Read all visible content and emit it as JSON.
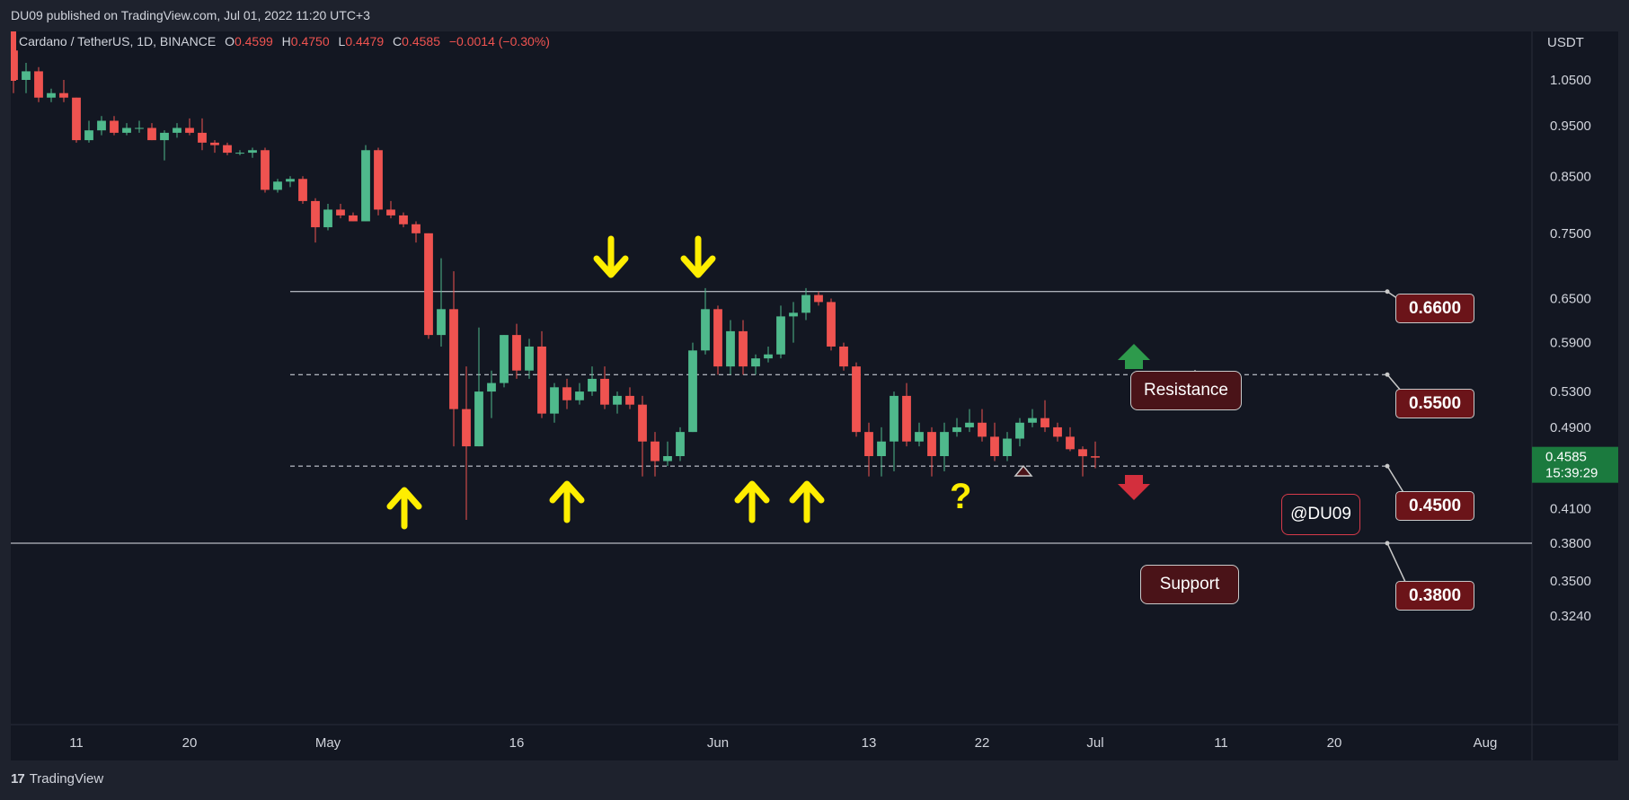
{
  "header": {
    "published": "DU09 published on TradingView.com, Jul 01, 2022 11:20 UTC+3"
  },
  "legend": {
    "symbol": "Cardano / TetherUS, 1D, BINANCE",
    "o_label": "O",
    "o_value": "0.4599",
    "h_label": "H",
    "h_value": "0.4750",
    "l_label": "L",
    "l_value": "0.4479",
    "c_label": "C",
    "c_value": "0.4585",
    "change": "−0.0014 (−0.30%)"
  },
  "price_axis": {
    "currency": "USDT",
    "current_price": "0.4585",
    "countdown": "15:39:29"
  },
  "annotations": {
    "levels": [
      "0.6600",
      "0.5500",
      "0.4500",
      "0.3800"
    ],
    "resistance_label": "Resistance",
    "support_label": "Support",
    "question_mark": "?",
    "watermark": "@DU09"
  },
  "footer": {
    "brand": "TradingView"
  },
  "colors": {
    "background": "#131722",
    "up": "#26a69a",
    "up_candle": "#4fb98c",
    "down": "#ef5350",
    "arrow_yellow": "#ffee00",
    "callout_fill": "#6b1419",
    "green_arrow": "#2e9a4c",
    "red_arrow": "#d32f3d"
  },
  "chart_data": {
    "type": "candlestick",
    "title": "Cardano / TetherUS, 1D, BINANCE",
    "ylabel": "USDT",
    "y_scale": "log",
    "ylim": [
      0.31,
      1.15
    ],
    "y_ticks": [
      "1.0500",
      "0.9500",
      "0.8500",
      "0.7500",
      "0.6500",
      "0.5900",
      "0.5300",
      "0.4900",
      "0.4100",
      "0.3800",
      "0.3500",
      "0.3240"
    ],
    "x_ticks": [
      {
        "label": "11",
        "date": "2022-04-11"
      },
      {
        "label": "20",
        "date": "2022-04-20"
      },
      {
        "label": "May",
        "date": "2022-05-01"
      },
      {
        "label": "16",
        "date": "2022-05-16"
      },
      {
        "label": "Jun",
        "date": "2022-06-01"
      },
      {
        "label": "13",
        "date": "2022-06-13"
      },
      {
        "label": "22",
        "date": "2022-06-22"
      },
      {
        "label": "Jul",
        "date": "2022-07-01"
      },
      {
        "label": "11",
        "date": "2022-07-11"
      },
      {
        "label": "20",
        "date": "2022-07-20"
      },
      {
        "label": "Aug",
        "date": "2022-08-01"
      }
    ],
    "horizontal_levels": [
      {
        "value": 0.66,
        "style": "solid"
      },
      {
        "value": 0.55,
        "style": "dashed"
      },
      {
        "value": 0.45,
        "style": "dashed"
      },
      {
        "value": 0.38,
        "style": "solid"
      }
    ],
    "candles": [
      {
        "date": "2022-04-06",
        "o": 1.12,
        "h": 1.14,
        "l": 1.02,
        "c": 1.05
      },
      {
        "date": "2022-04-07",
        "o": 1.05,
        "h": 1.09,
        "l": 1.02,
        "c": 1.07
      },
      {
        "date": "2022-04-08",
        "o": 1.07,
        "h": 1.08,
        "l": 1.0,
        "c": 1.01
      },
      {
        "date": "2022-04-09",
        "o": 1.01,
        "h": 1.03,
        "l": 1.0,
        "c": 1.02
      },
      {
        "date": "2022-04-10",
        "o": 1.02,
        "h": 1.05,
        "l": 1.0,
        "c": 1.01
      },
      {
        "date": "2022-04-11",
        "o": 1.01,
        "h": 1.01,
        "l": 0.915,
        "c": 0.92
      },
      {
        "date": "2022-04-12",
        "o": 0.92,
        "h": 0.96,
        "l": 0.915,
        "c": 0.94
      },
      {
        "date": "2022-04-13",
        "o": 0.94,
        "h": 0.97,
        "l": 0.93,
        "c": 0.96
      },
      {
        "date": "2022-04-14",
        "o": 0.96,
        "h": 0.97,
        "l": 0.93,
        "c": 0.935
      },
      {
        "date": "2022-04-15",
        "o": 0.935,
        "h": 0.955,
        "l": 0.93,
        "c": 0.945
      },
      {
        "date": "2022-04-16",
        "o": 0.945,
        "h": 0.96,
        "l": 0.935,
        "c": 0.945
      },
      {
        "date": "2022-04-17",
        "o": 0.945,
        "h": 0.955,
        "l": 0.92,
        "c": 0.92
      },
      {
        "date": "2022-04-18",
        "o": 0.92,
        "h": 0.94,
        "l": 0.88,
        "c": 0.935
      },
      {
        "date": "2022-04-19",
        "o": 0.935,
        "h": 0.955,
        "l": 0.925,
        "c": 0.945
      },
      {
        "date": "2022-04-20",
        "o": 0.945,
        "h": 0.965,
        "l": 0.93,
        "c": 0.935
      },
      {
        "date": "2022-04-21",
        "o": 0.935,
        "h": 0.965,
        "l": 0.9,
        "c": 0.915
      },
      {
        "date": "2022-04-22",
        "o": 0.915,
        "h": 0.92,
        "l": 0.895,
        "c": 0.91
      },
      {
        "date": "2022-04-23",
        "o": 0.91,
        "h": 0.915,
        "l": 0.89,
        "c": 0.895
      },
      {
        "date": "2022-04-24",
        "o": 0.895,
        "h": 0.9,
        "l": 0.89,
        "c": 0.895
      },
      {
        "date": "2022-04-25",
        "o": 0.895,
        "h": 0.905,
        "l": 0.885,
        "c": 0.9
      },
      {
        "date": "2022-04-26",
        "o": 0.9,
        "h": 0.905,
        "l": 0.82,
        "c": 0.825
      },
      {
        "date": "2022-04-27",
        "o": 0.825,
        "h": 0.845,
        "l": 0.82,
        "c": 0.84
      },
      {
        "date": "2022-04-28",
        "o": 0.84,
        "h": 0.85,
        "l": 0.83,
        "c": 0.845
      },
      {
        "date": "2022-04-29",
        "o": 0.845,
        "h": 0.85,
        "l": 0.8,
        "c": 0.805
      },
      {
        "date": "2022-04-30",
        "o": 0.805,
        "h": 0.81,
        "l": 0.735,
        "c": 0.76
      },
      {
        "date": "2022-05-01",
        "o": 0.76,
        "h": 0.8,
        "l": 0.755,
        "c": 0.79
      },
      {
        "date": "2022-05-02",
        "o": 0.79,
        "h": 0.8,
        "l": 0.775,
        "c": 0.78
      },
      {
        "date": "2022-05-03",
        "o": 0.78,
        "h": 0.785,
        "l": 0.77,
        "c": 0.77
      },
      {
        "date": "2022-05-04",
        "o": 0.77,
        "h": 0.91,
        "l": 0.77,
        "c": 0.9
      },
      {
        "date": "2022-05-05",
        "o": 0.9,
        "h": 0.905,
        "l": 0.78,
        "c": 0.79
      },
      {
        "date": "2022-05-06",
        "o": 0.79,
        "h": 0.805,
        "l": 0.775,
        "c": 0.78
      },
      {
        "date": "2022-05-07",
        "o": 0.78,
        "h": 0.785,
        "l": 0.76,
        "c": 0.765
      },
      {
        "date": "2022-05-08",
        "o": 0.765,
        "h": 0.77,
        "l": 0.735,
        "c": 0.75
      },
      {
        "date": "2022-05-09",
        "o": 0.75,
        "h": 0.75,
        "l": 0.595,
        "c": 0.6
      },
      {
        "date": "2022-05-10",
        "o": 0.6,
        "h": 0.71,
        "l": 0.585,
        "c": 0.635
      },
      {
        "date": "2022-05-11",
        "o": 0.635,
        "h": 0.69,
        "l": 0.47,
        "c": 0.51
      },
      {
        "date": "2022-05-12",
        "o": 0.51,
        "h": 0.56,
        "l": 0.4,
        "c": 0.47
      },
      {
        "date": "2022-05-13",
        "o": 0.47,
        "h": 0.61,
        "l": 0.47,
        "c": 0.53
      },
      {
        "date": "2022-05-14",
        "o": 0.53,
        "h": 0.555,
        "l": 0.5,
        "c": 0.54
      },
      {
        "date": "2022-05-15",
        "o": 0.54,
        "h": 0.6,
        "l": 0.535,
        "c": 0.6
      },
      {
        "date": "2022-05-16",
        "o": 0.6,
        "h": 0.615,
        "l": 0.545,
        "c": 0.555
      },
      {
        "date": "2022-05-17",
        "o": 0.555,
        "h": 0.595,
        "l": 0.545,
        "c": 0.585
      },
      {
        "date": "2022-05-18",
        "o": 0.585,
        "h": 0.605,
        "l": 0.5,
        "c": 0.505
      },
      {
        "date": "2022-05-19",
        "o": 0.505,
        "h": 0.54,
        "l": 0.495,
        "c": 0.535
      },
      {
        "date": "2022-05-20",
        "o": 0.535,
        "h": 0.545,
        "l": 0.51,
        "c": 0.52
      },
      {
        "date": "2022-05-21",
        "o": 0.52,
        "h": 0.54,
        "l": 0.515,
        "c": 0.53
      },
      {
        "date": "2022-05-22",
        "o": 0.53,
        "h": 0.56,
        "l": 0.525,
        "c": 0.545
      },
      {
        "date": "2022-05-23",
        "o": 0.545,
        "h": 0.56,
        "l": 0.51,
        "c": 0.515
      },
      {
        "date": "2022-05-24",
        "o": 0.515,
        "h": 0.53,
        "l": 0.505,
        "c": 0.525
      },
      {
        "date": "2022-05-25",
        "o": 0.525,
        "h": 0.535,
        "l": 0.51,
        "c": 0.515
      },
      {
        "date": "2022-05-26",
        "o": 0.515,
        "h": 0.525,
        "l": 0.44,
        "c": 0.475
      },
      {
        "date": "2022-05-27",
        "o": 0.475,
        "h": 0.485,
        "l": 0.44,
        "c": 0.455
      },
      {
        "date": "2022-05-28",
        "o": 0.455,
        "h": 0.475,
        "l": 0.45,
        "c": 0.46
      },
      {
        "date": "2022-05-29",
        "o": 0.46,
        "h": 0.49,
        "l": 0.455,
        "c": 0.485
      },
      {
        "date": "2022-05-30",
        "o": 0.485,
        "h": 0.59,
        "l": 0.485,
        "c": 0.58
      },
      {
        "date": "2022-05-31",
        "o": 0.58,
        "h": 0.665,
        "l": 0.575,
        "c": 0.635
      },
      {
        "date": "2022-06-01",
        "o": 0.635,
        "h": 0.64,
        "l": 0.55,
        "c": 0.56
      },
      {
        "date": "2022-06-02",
        "o": 0.56,
        "h": 0.62,
        "l": 0.55,
        "c": 0.605
      },
      {
        "date": "2022-06-03",
        "o": 0.605,
        "h": 0.62,
        "l": 0.55,
        "c": 0.56
      },
      {
        "date": "2022-06-04",
        "o": 0.56,
        "h": 0.575,
        "l": 0.55,
        "c": 0.57
      },
      {
        "date": "2022-06-05",
        "o": 0.57,
        "h": 0.585,
        "l": 0.565,
        "c": 0.575
      },
      {
        "date": "2022-06-06",
        "o": 0.575,
        "h": 0.64,
        "l": 0.57,
        "c": 0.625
      },
      {
        "date": "2022-06-07",
        "o": 0.625,
        "h": 0.645,
        "l": 0.59,
        "c": 0.63
      },
      {
        "date": "2022-06-08",
        "o": 0.63,
        "h": 0.665,
        "l": 0.62,
        "c": 0.655
      },
      {
        "date": "2022-06-09",
        "o": 0.655,
        "h": 0.66,
        "l": 0.64,
        "c": 0.645
      },
      {
        "date": "2022-06-10",
        "o": 0.645,
        "h": 0.65,
        "l": 0.58,
        "c": 0.585
      },
      {
        "date": "2022-06-11",
        "o": 0.585,
        "h": 0.59,
        "l": 0.555,
        "c": 0.56
      },
      {
        "date": "2022-06-12",
        "o": 0.56,
        "h": 0.565,
        "l": 0.48,
        "c": 0.485
      },
      {
        "date": "2022-06-13",
        "o": 0.485,
        "h": 0.495,
        "l": 0.44,
        "c": 0.46
      },
      {
        "date": "2022-06-14",
        "o": 0.46,
        "h": 0.49,
        "l": 0.44,
        "c": 0.475
      },
      {
        "date": "2022-06-15",
        "o": 0.475,
        "h": 0.53,
        "l": 0.445,
        "c": 0.525
      },
      {
        "date": "2022-06-16",
        "o": 0.525,
        "h": 0.54,
        "l": 0.47,
        "c": 0.475
      },
      {
        "date": "2022-06-17",
        "o": 0.475,
        "h": 0.495,
        "l": 0.47,
        "c": 0.485
      },
      {
        "date": "2022-06-18",
        "o": 0.485,
        "h": 0.49,
        "l": 0.44,
        "c": 0.46
      },
      {
        "date": "2022-06-19",
        "o": 0.46,
        "h": 0.495,
        "l": 0.445,
        "c": 0.485
      },
      {
        "date": "2022-06-20",
        "o": 0.485,
        "h": 0.5,
        "l": 0.48,
        "c": 0.49
      },
      {
        "date": "2022-06-21",
        "o": 0.49,
        "h": 0.51,
        "l": 0.485,
        "c": 0.495
      },
      {
        "date": "2022-06-22",
        "o": 0.495,
        "h": 0.51,
        "l": 0.475,
        "c": 0.48
      },
      {
        "date": "2022-06-23",
        "o": 0.48,
        "h": 0.495,
        "l": 0.455,
        "c": 0.46
      },
      {
        "date": "2022-06-24",
        "o": 0.46,
        "h": 0.485,
        "l": 0.455,
        "c": 0.478
      },
      {
        "date": "2022-06-25",
        "o": 0.478,
        "h": 0.5,
        "l": 0.47,
        "c": 0.495
      },
      {
        "date": "2022-06-26",
        "o": 0.495,
        "h": 0.51,
        "l": 0.49,
        "c": 0.5
      },
      {
        "date": "2022-06-27",
        "o": 0.5,
        "h": 0.52,
        "l": 0.485,
        "c": 0.49
      },
      {
        "date": "2022-06-28",
        "o": 0.49,
        "h": 0.495,
        "l": 0.475,
        "c": 0.48
      },
      {
        "date": "2022-06-29",
        "o": 0.48,
        "h": 0.49,
        "l": 0.465,
        "c": 0.467
      },
      {
        "date": "2022-06-30",
        "o": 0.467,
        "h": 0.47,
        "l": 0.44,
        "c": 0.4599
      },
      {
        "date": "2022-07-01",
        "o": 0.4599,
        "h": 0.475,
        "l": 0.4479,
        "c": 0.4585
      }
    ]
  }
}
